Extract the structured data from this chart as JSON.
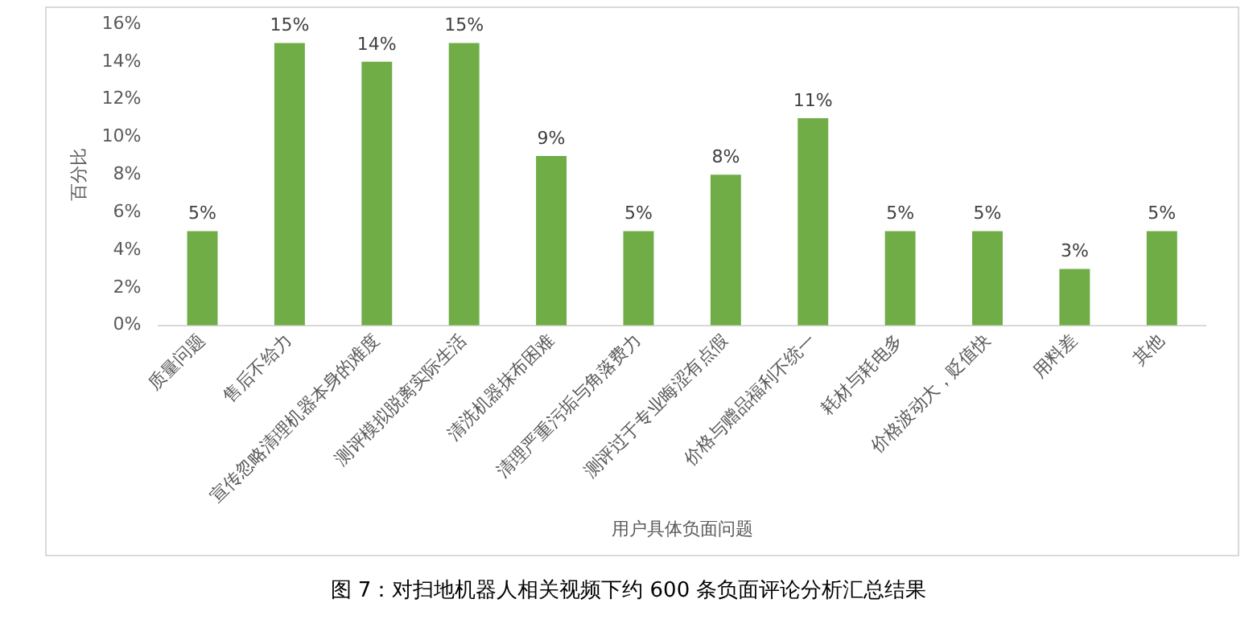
{
  "chart_data": {
    "type": "bar",
    "xlabel": "用户具体负面问题",
    "ylabel": "百分比",
    "categories": [
      "质量问题",
      "售后不给力",
      "宣传忽略清理机器本身的难度",
      "测评模拟脱离实际生活",
      "清洗机器抹布困难",
      "清理严重污垢与角落费力",
      "测评过于专业晦涩有点假",
      "价格与赠品福利不统一",
      "耗材与耗电多",
      "价格波动大，贬值快",
      "用料差",
      "其他"
    ],
    "values": [
      5,
      15,
      14,
      15,
      9,
      5,
      8,
      11,
      5,
      5,
      3,
      5
    ],
    "value_labels": [
      "5%",
      "15%",
      "14%",
      "15%",
      "9%",
      "5%",
      "8%",
      "11%",
      "5%",
      "5%",
      "3%",
      "5%"
    ],
    "color": "#70ad47",
    "ylim": [
      0,
      16
    ],
    "yticks": [
      {
        "value": 0,
        "label": "0%"
      },
      {
        "value": 2,
        "label": "2%"
      },
      {
        "value": 4,
        "label": "4%"
      },
      {
        "value": 6,
        "label": "6%"
      },
      {
        "value": 8,
        "label": "8%"
      },
      {
        "value": 10,
        "label": "10%"
      },
      {
        "value": 12,
        "label": "12%"
      },
      {
        "value": 14,
        "label": "14%"
      },
      {
        "value": 16,
        "label": "16%"
      }
    ],
    "grid": false,
    "legend": false,
    "annotations": [
      "图 7：对扫地机器人相关视频下约 600 条负面评论分析汇总结果"
    ]
  }
}
